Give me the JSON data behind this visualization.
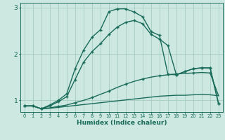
{
  "title": "",
  "xlabel": "Humidex (Indice chaleur)",
  "xlim": [
    -0.5,
    23.5
  ],
  "ylim": [
    0.75,
    3.1
  ],
  "background_color": "#cce8e0",
  "grid_color": "#a0c8bc",
  "line_color": "#1a6b5a",
  "xticks": [
    0,
    1,
    2,
    3,
    4,
    5,
    6,
    7,
    8,
    9,
    10,
    11,
    12,
    13,
    14,
    15,
    16,
    17,
    18,
    19,
    20,
    21,
    22,
    23
  ],
  "yticks": [
    1,
    2,
    3
  ],
  "line1_x": [
    0,
    1,
    2,
    3,
    4,
    5,
    6,
    7,
    8,
    9,
    10,
    11,
    12,
    13,
    14,
    15,
    16,
    17,
    18,
    19,
    20,
    21,
    22,
    23
  ],
  "line1_y": [
    0.88,
    0.88,
    0.82,
    0.83,
    0.85,
    0.87,
    0.89,
    0.91,
    0.93,
    0.95,
    0.97,
    0.99,
    1.01,
    1.03,
    1.05,
    1.07,
    1.09,
    1.1,
    1.11,
    1.11,
    1.12,
    1.13,
    1.12,
    1.1
  ],
  "line2_x": [
    0,
    1,
    2,
    3,
    4,
    5,
    6,
    7,
    8,
    9,
    10,
    11,
    12,
    13,
    14,
    15,
    16,
    17,
    18,
    19,
    20,
    21,
    22,
    23
  ],
  "line2_y": [
    0.88,
    0.88,
    0.82,
    0.84,
    0.87,
    0.9,
    0.95,
    1.0,
    1.06,
    1.13,
    1.2,
    1.28,
    1.35,
    1.41,
    1.46,
    1.5,
    1.53,
    1.55,
    1.57,
    1.58,
    1.59,
    1.6,
    1.59,
    1.1
  ],
  "line3_x": [
    0,
    1,
    2,
    3,
    4,
    5,
    6,
    7,
    8,
    9,
    10,
    11,
    12,
    13,
    14,
    15,
    16,
    17,
    18,
    19,
    20,
    21,
    22,
    23
  ],
  "line3_y": [
    0.88,
    0.88,
    0.82,
    0.88,
    0.97,
    1.08,
    1.45,
    1.82,
    2.05,
    2.22,
    2.42,
    2.58,
    2.68,
    2.72,
    2.65,
    2.42,
    2.32,
    2.18,
    1.55,
    1.62,
    1.68,
    1.7,
    1.7,
    0.93
  ],
  "line4_x": [
    0,
    1,
    2,
    3,
    4,
    5,
    6,
    7,
    8,
    9,
    10,
    11,
    12,
    13,
    14,
    15,
    16,
    17,
    18,
    19,
    20,
    21,
    22,
    23
  ],
  "line4_y": [
    0.88,
    0.88,
    0.82,
    0.9,
    1.0,
    1.14,
    1.68,
    2.08,
    2.36,
    2.52,
    2.91,
    2.97,
    2.97,
    2.9,
    2.8,
    2.48,
    2.4,
    1.56,
    1.55,
    1.62,
    1.68,
    1.7,
    1.7,
    0.93
  ],
  "markersize": 3.5,
  "linewidth": 1.0
}
